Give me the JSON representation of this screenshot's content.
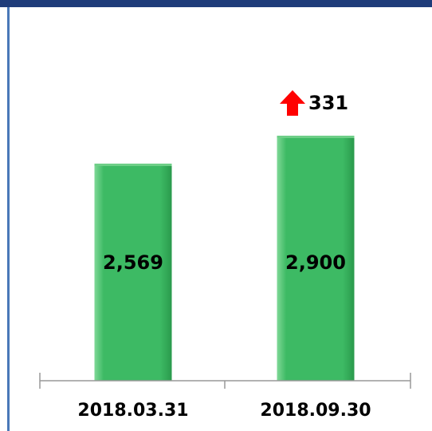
{
  "chart_data": {
    "type": "bar",
    "categories": [
      "2018.03.31",
      "2018.09.30"
    ],
    "values": [
      2569,
      2900
    ],
    "value_labels": [
      "2,569",
      "2,900"
    ],
    "color": "#3dba64",
    "annotations": [
      {
        "text": "331",
        "color": "#ff0000"
      }
    ]
  }
}
